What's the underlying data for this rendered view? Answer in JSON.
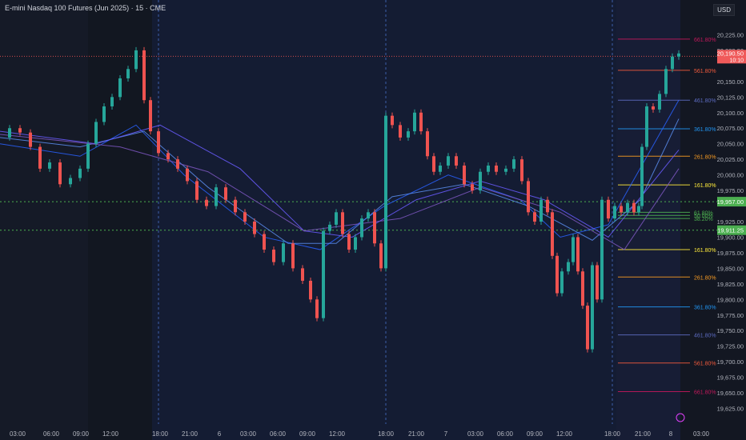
{
  "chart_data": {
    "type": "candlestick",
    "title": "E-mini Nasdaq 100 Futures (Jun 2025) · 15 · CME",
    "currency": "USD",
    "ylim": [
      19600,
      20250
    ],
    "y_ticks": [
      "20,225.00",
      "20,200.00",
      "20,150.00",
      "20,125.00",
      "20,100.00",
      "20,075.00",
      "20,050.00",
      "20,025.00",
      "20,000.00",
      "19,975.00",
      "19,925.00",
      "19,900.00",
      "19,875.00",
      "19,850.00",
      "19,825.00",
      "19,800.00",
      "19,775.00",
      "19,750.00",
      "19,725.00",
      "19,700.00",
      "19,675.00",
      "19,650.00",
      "19,625.00"
    ],
    "x_ticks": [
      "03:00",
      "06:00",
      "09:00",
      "12:00",
      "18:00",
      "21:00",
      "6",
      "03:00",
      "06:00",
      "09:00",
      "12:00",
      "18:00",
      "21:00",
      "7",
      "03:00",
      "06:00",
      "09:00",
      "12:00",
      "18:00",
      "21:00",
      "8",
      "03:00"
    ],
    "current_price": {
      "label": "20,190.50",
      "countdown": "10:10",
      "value": 20190.5
    },
    "levels": [
      {
        "label": "19,957.00",
        "value": 19957,
        "color": "#4caf50"
      },
      {
        "label": "19,911.25",
        "value": 19911.25,
        "color": "#4caf50"
      }
    ],
    "fib_up": [
      {
        "label": "661.80%",
        "value": 20218,
        "color": "#c2185b"
      },
      {
        "label": "561.80%",
        "value": 20168,
        "color": "#f05a3c"
      },
      {
        "label": "461.80%",
        "value": 20120,
        "color": "#5c6bc0"
      },
      {
        "label": "361.80%",
        "value": 20074,
        "color": "#2196f3"
      },
      {
        "label": "261.80%",
        "value": 20030,
        "color": "#f59a23"
      },
      {
        "label": "161.80%",
        "value": 19984,
        "color": "#ffeb3b"
      },
      {
        "label": "61.80%",
        "value": 19940,
        "color": "#4caf50"
      },
      {
        "label": "50.00%",
        "value": 19935,
        "color": "#4caf50"
      },
      {
        "label": "38.20%",
        "value": 19930,
        "color": "#4caf50"
      }
    ],
    "fib_down": [
      {
        "label": "161.80%",
        "value": 19880,
        "color": "#ffeb3b"
      },
      {
        "label": "261.80%",
        "value": 19836,
        "color": "#f59a23"
      },
      {
        "label": "361.80%",
        "value": 19788,
        "color": "#2196f3"
      },
      {
        "label": "461.80%",
        "value": 19743,
        "color": "#5c6bc0"
      },
      {
        "label": "561.80%",
        "value": 19698,
        "color": "#f05a3c"
      },
      {
        "label": "661.80%",
        "value": 19652,
        "color": "#c2185b"
      }
    ],
    "price_path": [
      [
        0,
        20060
      ],
      [
        12,
        20075
      ],
      [
        25,
        20068
      ],
      [
        38,
        20045
      ],
      [
        50,
        20010
      ],
      [
        62,
        20020
      ],
      [
        75,
        19985
      ],
      [
        88,
        19995
      ],
      [
        100,
        20010
      ],
      [
        110,
        20050
      ],
      [
        120,
        20085
      ],
      [
        130,
        20110
      ],
      [
        140,
        20125
      ],
      [
        150,
        20155
      ],
      [
        160,
        20170
      ],
      [
        170,
        20200
      ],
      [
        180,
        20120
      ],
      [
        188,
        20070
      ],
      [
        198,
        20035
      ],
      [
        210,
        20025
      ],
      [
        222,
        20010
      ],
      [
        234,
        19990
      ],
      [
        246,
        19960
      ],
      [
        258,
        19950
      ],
      [
        270,
        19980
      ],
      [
        282,
        19960
      ],
      [
        294,
        19940
      ],
      [
        306,
        19925
      ],
      [
        318,
        19905
      ],
      [
        330,
        19880
      ],
      [
        342,
        19860
      ],
      [
        354,
        19890
      ],
      [
        366,
        19850
      ],
      [
        378,
        19830
      ],
      [
        388,
        19800
      ],
      [
        396,
        19770
      ],
      [
        404,
        19910
      ],
      [
        412,
        19920
      ],
      [
        420,
        19940
      ],
      [
        428,
        19905
      ],
      [
        436,
        19880
      ],
      [
        444,
        19900
      ],
      [
        452,
        19930
      ],
      [
        460,
        19940
      ],
      [
        468,
        19890
      ],
      [
        476,
        19850
      ],
      [
        482,
        20095
      ],
      [
        490,
        20080
      ],
      [
        500,
        20060
      ],
      [
        510,
        20070
      ],
      [
        518,
        20100
      ],
      [
        526,
        20070
      ],
      [
        534,
        20030
      ],
      [
        542,
        20005
      ],
      [
        550,
        20015
      ],
      [
        560,
        20030
      ],
      [
        570,
        20015
      ],
      [
        580,
        19985
      ],
      [
        590,
        19975
      ],
      [
        600,
        20005
      ],
      [
        610,
        20015
      ],
      [
        620,
        20005
      ],
      [
        632,
        20010
      ],
      [
        642,
        20025
      ],
      [
        652,
        19990
      ],
      [
        660,
        19940
      ],
      [
        668,
        19925
      ],
      [
        676,
        19960
      ],
      [
        684,
        19940
      ],
      [
        690,
        19870
      ],
      [
        696,
        19810
      ],
      [
        702,
        19845
      ],
      [
        710,
        19860
      ],
      [
        716,
        19900
      ],
      [
        722,
        19845
      ],
      [
        728,
        19790
      ],
      [
        734,
        19720
      ],
      [
        740,
        19855
      ],
      [
        746,
        19800
      ],
      [
        752,
        19960
      ],
      [
        760,
        19930
      ],
      [
        768,
        19950
      ],
      [
        776,
        19940
      ],
      [
        784,
        19955
      ],
      [
        792,
        19940
      ],
      [
        798,
        19950
      ],
      [
        802,
        20045
      ],
      [
        808,
        20110
      ],
      [
        816,
        20105
      ],
      [
        824,
        20130
      ],
      [
        832,
        20170
      ],
      [
        840,
        20190
      ],
      [
        848,
        20195
      ]
    ],
    "ma_paths": [
      {
        "color": "#2962ff",
        "points": [
          [
            0,
            20050
          ],
          [
            100,
            20030
          ],
          [
            170,
            20080
          ],
          [
            230,
            20000
          ],
          [
            330,
            19900
          ],
          [
            400,
            19880
          ],
          [
            480,
            19950
          ],
          [
            560,
            20000
          ],
          [
            650,
            19960
          ],
          [
            700,
            19900
          ],
          [
            760,
            19920
          ],
          [
            848,
            20120
          ]
        ]
      },
      {
        "color": "#5b8def",
        "points": [
          [
            0,
            20060
          ],
          [
            100,
            20045
          ],
          [
            180,
            20070
          ],
          [
            260,
            19980
          ],
          [
            360,
            19890
          ],
          [
            420,
            19890
          ],
          [
            490,
            19965
          ],
          [
            580,
            19985
          ],
          [
            660,
            19950
          ],
          [
            740,
            19895
          ],
          [
            800,
            19960
          ],
          [
            848,
            20090
          ]
        ]
      },
      {
        "color": "#6a5cff",
        "points": [
          [
            0,
            20070
          ],
          [
            120,
            20050
          ],
          [
            200,
            20080
          ],
          [
            300,
            20010
          ],
          [
            380,
            19910
          ],
          [
            440,
            19900
          ],
          [
            520,
            19960
          ],
          [
            600,
            19990
          ],
          [
            680,
            19960
          ],
          [
            760,
            19900
          ],
          [
            848,
            20040
          ]
        ]
      },
      {
        "color": "#7e57c2",
        "points": [
          [
            0,
            20065
          ],
          [
            150,
            20045
          ],
          [
            260,
            20005
          ],
          [
            380,
            19910
          ],
          [
            500,
            19930
          ],
          [
            600,
            19980
          ],
          [
            700,
            19940
          ],
          [
            780,
            19880
          ],
          [
            848,
            20010
          ]
        ]
      }
    ]
  }
}
